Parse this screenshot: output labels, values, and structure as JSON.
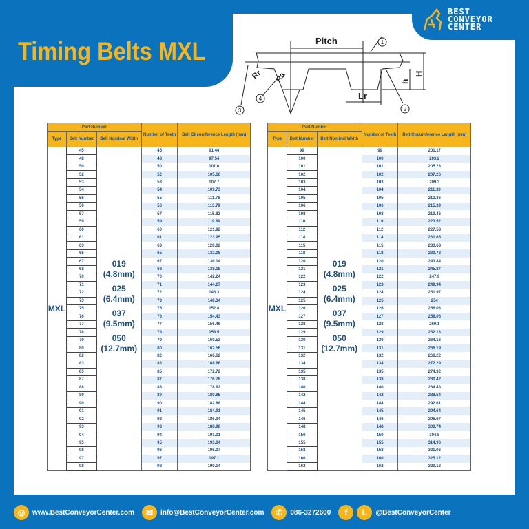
{
  "header": {
    "title": "Timing Belts MXL",
    "logo": {
      "line1": "BEST",
      "line2": "CONVEYOR",
      "line3": "CENTER"
    }
  },
  "diagram": {
    "pitch": "Pitch",
    "rr": "Rr",
    "ra": "Ra",
    "lr": "Lr",
    "h_small": "h",
    "h_big": "H",
    "callouts": [
      "1",
      "2",
      "3",
      "4"
    ]
  },
  "table_headers": {
    "part_number": "Part Number",
    "type": "Type",
    "belt_number": "Belt Number",
    "nominal_width": "Belt Nominal Width",
    "teeth": "Number of Teeth",
    "length": "Belt Circumference Length (mm)"
  },
  "type": "MXL",
  "widths": [
    "019",
    "(4.8mm)",
    "025",
    "(6.4mm)",
    "037",
    "(9.5mm)",
    "050",
    "(12.7mm)"
  ],
  "tables": [
    {
      "rows": [
        [
          "45",
          "45",
          "91.44"
        ],
        [
          "48",
          "48",
          "97.54"
        ],
        [
          "50",
          "50",
          "101.6"
        ],
        [
          "52",
          "52",
          "105.66"
        ],
        [
          "53",
          "53",
          "107.7"
        ],
        [
          "54",
          "54",
          "109.73"
        ],
        [
          "55",
          "55",
          "111.76"
        ],
        [
          "56",
          "56",
          "113.79"
        ],
        [
          "57",
          "57",
          "115.82"
        ],
        [
          "59",
          "59",
          "119.89"
        ],
        [
          "60",
          "60",
          "121.92"
        ],
        [
          "61",
          "61",
          "123.95"
        ],
        [
          "63",
          "63",
          "128.02"
        ],
        [
          "65",
          "65",
          "132.08"
        ],
        [
          "67",
          "67",
          "136.14"
        ],
        [
          "68",
          "68",
          "138.18"
        ],
        [
          "70",
          "70",
          "142.24"
        ],
        [
          "71",
          "71",
          "144.27"
        ],
        [
          "72",
          "72",
          "146.3"
        ],
        [
          "73",
          "73",
          "148.34"
        ],
        [
          "75",
          "75",
          "152.4"
        ],
        [
          "76",
          "76",
          "154.43"
        ],
        [
          "77",
          "77",
          "156.46"
        ],
        [
          "78",
          "78",
          "158.5"
        ],
        [
          "79",
          "79",
          "160.53"
        ],
        [
          "80",
          "80",
          "162.56"
        ],
        [
          "82",
          "82",
          "166.62"
        ],
        [
          "83",
          "83",
          "168.66"
        ],
        [
          "85",
          "85",
          "172.72"
        ],
        [
          "87",
          "87",
          "176.78"
        ],
        [
          "88",
          "88",
          "178.82"
        ],
        [
          "89",
          "89",
          "180.85"
        ],
        [
          "90",
          "90",
          "182.88"
        ],
        [
          "91",
          "91",
          "184.91"
        ],
        [
          "92",
          "92",
          "186.94"
        ],
        [
          "93",
          "93",
          "188.98"
        ],
        [
          "94",
          "94",
          "191.01"
        ],
        [
          "95",
          "95",
          "193.04"
        ],
        [
          "96",
          "96",
          "195.07"
        ],
        [
          "97",
          "97",
          "197.1"
        ],
        [
          "98",
          "98",
          "199.14"
        ]
      ]
    },
    {
      "rows": [
        [
          "99",
          "99",
          "201.17"
        ],
        [
          "100",
          "100",
          "203.2"
        ],
        [
          "101",
          "101",
          "205.23"
        ],
        [
          "102",
          "102",
          "207.26"
        ],
        [
          "103",
          "103",
          "209.3"
        ],
        [
          "104",
          "104",
          "211.33"
        ],
        [
          "105",
          "105",
          "213.36"
        ],
        [
          "106",
          "106",
          "215.39"
        ],
        [
          "108",
          "108",
          "219.46"
        ],
        [
          "110",
          "110",
          "223.52"
        ],
        [
          "112",
          "112",
          "227.58"
        ],
        [
          "114",
          "114",
          "231.65"
        ],
        [
          "115",
          "115",
          "233.68"
        ],
        [
          "118",
          "118",
          "239.78"
        ],
        [
          "120",
          "120",
          "243.84"
        ],
        [
          "121",
          "121",
          "245.87"
        ],
        [
          "122",
          "122",
          "247.9"
        ],
        [
          "123",
          "123",
          "249.94"
        ],
        [
          "124",
          "124",
          "251.97"
        ],
        [
          "125",
          "125",
          "254"
        ],
        [
          "126",
          "126",
          "256.03"
        ],
        [
          "127",
          "127",
          "258.06"
        ],
        [
          "128",
          "128",
          "260.1"
        ],
        [
          "129",
          "129",
          "262.13"
        ],
        [
          "130",
          "130",
          "264.16"
        ],
        [
          "131",
          "131",
          "266.19"
        ],
        [
          "132",
          "132",
          "268.22"
        ],
        [
          "134",
          "134",
          "272.29"
        ],
        [
          "135",
          "135",
          "274.32"
        ],
        [
          "138",
          "138",
          "280.42"
        ],
        [
          "140",
          "140",
          "284.48"
        ],
        [
          "142",
          "142",
          "288.54"
        ],
        [
          "144",
          "144",
          "292.61"
        ],
        [
          "145",
          "145",
          "294.64"
        ],
        [
          "146",
          "146",
          "296.67"
        ],
        [
          "148",
          "148",
          "300.74"
        ],
        [
          "150",
          "150",
          "304.8"
        ],
        [
          "155",
          "155",
          "314.96"
        ],
        [
          "158",
          "158",
          "321.06"
        ],
        [
          "160",
          "160",
          "325.12"
        ],
        [
          "162",
          "162",
          "329.18"
        ]
      ]
    }
  ],
  "footer": {
    "website": "www.BestConveyorCenter.com",
    "email": "info@BestConveyorCenter.com",
    "phone": "086-3272600",
    "social": "@BestConveyorCenter",
    "line_icon_letter": "L",
    "facebook_icon_letter": "f"
  },
  "colors": {
    "brand_blue": "#0b73bd",
    "accent_yellow": "#f7b51c",
    "text_navy": "#1e4e80"
  }
}
